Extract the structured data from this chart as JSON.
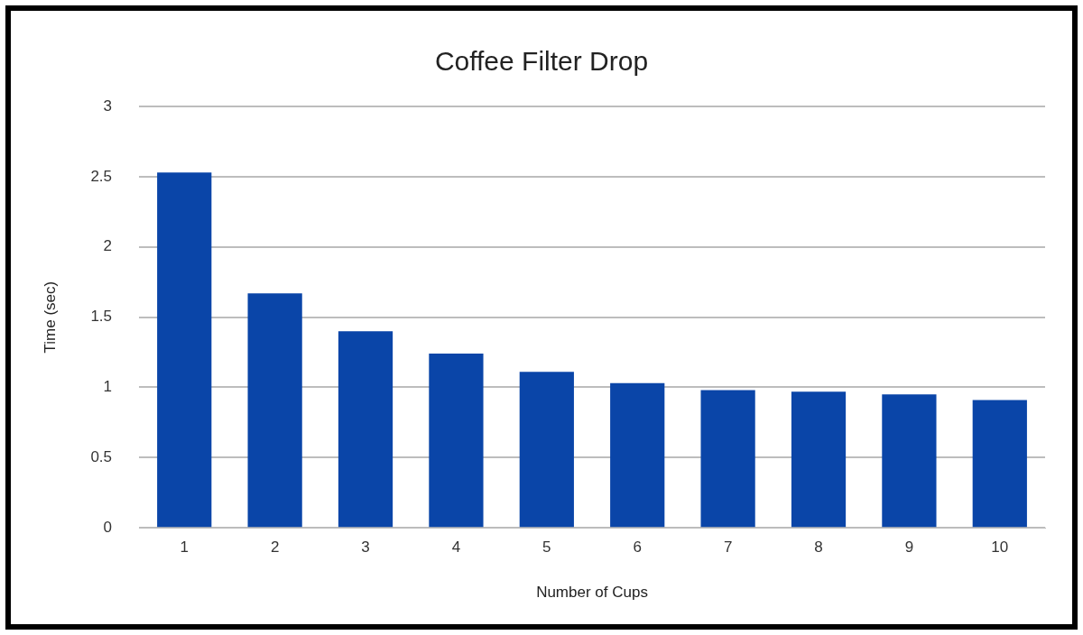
{
  "chart_data": {
    "type": "bar",
    "title": "Coffee Filter Drop",
    "xlabel": "Number of Cups",
    "ylabel": "Time (sec)",
    "categories": [
      "1",
      "2",
      "3",
      "4",
      "5",
      "6",
      "7",
      "8",
      "9",
      "10"
    ],
    "values": [
      2.53,
      1.67,
      1.4,
      1.24,
      1.11,
      1.03,
      0.98,
      0.97,
      0.95,
      0.91
    ],
    "color": "#0a45a8",
    "ylim": [
      0,
      3
    ],
    "yticks": [
      0,
      0.5,
      1,
      1.5,
      2,
      2.5,
      3
    ],
    "grid": "y",
    "legend": false
  }
}
